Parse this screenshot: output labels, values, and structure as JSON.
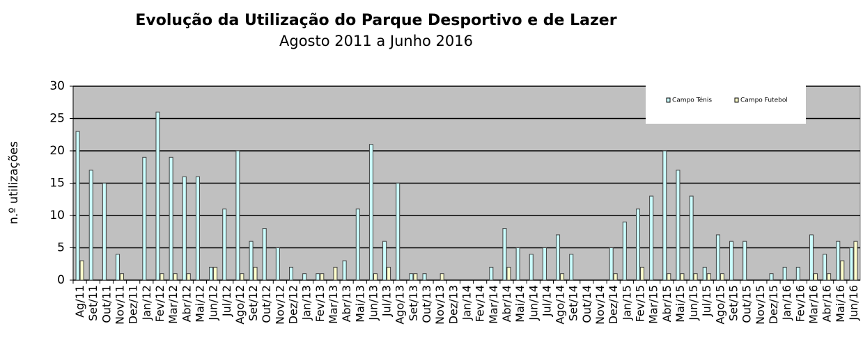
{
  "chart_data": {
    "type": "bar",
    "title": "Evolução da Utilização do Parque Desportivo e de Lazer",
    "subtitle": "Agosto 2011 a Junho 2016",
    "y_label": "n.º utilizações",
    "categories": [
      "Ag/11",
      "Set/11",
      "Out/11",
      "Nov/11",
      "Dez/11",
      "Jan/12",
      "Fev/12",
      "Mar/12",
      "Abr/12",
      "Mai/12",
      "Jun/12",
      "Jul/12",
      "Ago/12",
      "Set/12",
      "Out/12",
      "Nov/12",
      "Dez/12",
      "Jan/13",
      "Fev/13",
      "Mar/13",
      "Abr/13",
      "Mai/13",
      "Jun/13",
      "Jul/13",
      "Ago/13",
      "Set/13",
      "Out/13",
      "Nov/13",
      "Dez/13",
      "Jan/14",
      "Fev/14",
      "Mar/14",
      "Abr/14",
      "Mai/14",
      "Jun/14",
      "Jul/14",
      "Ago/14",
      "Set/14",
      "Out/14",
      "Nov/14",
      "Dez/14",
      "Jan/15",
      "Fev/15",
      "Mar/15",
      "Abr/15",
      "Mai/15",
      "Jun/15",
      "Jul/15",
      "Ago/15",
      "Set/15",
      "Out/15",
      "Nov/15",
      "Dez/15",
      "Jan/16",
      "Fev/16",
      "Mar/16",
      "Abr/16",
      "Mai/16",
      "Jun/16"
    ],
    "series": [
      {
        "name": "Campo Ténis",
        "color": "#ccffff",
        "values": [
          23,
          17,
          15,
          4,
          0,
          19,
          26,
          19,
          16,
          16,
          2,
          11,
          20,
          6,
          8,
          5,
          2,
          1,
          1,
          0,
          3,
          11,
          21,
          6,
          15,
          1,
          1,
          0,
          0,
          0,
          0,
          2,
          8,
          5,
          4,
          5,
          7,
          4,
          0,
          0,
          5,
          9,
          11,
          13,
          20,
          17,
          13,
          2,
          7,
          6,
          6,
          0,
          1,
          2,
          2,
          7,
          4,
          6,
          5
        ]
      },
      {
        "name": "Campo Futebol",
        "color": "#ffffcc",
        "values": [
          3,
          0,
          0,
          1,
          0,
          0,
          1,
          1,
          1,
          0,
          2,
          0,
          1,
          2,
          0,
          0,
          0,
          0,
          1,
          2,
          0,
          0,
          1,
          2,
          0,
          1,
          0,
          1,
          0,
          0,
          0,
          0,
          2,
          0,
          0,
          0,
          1,
          0,
          0,
          0,
          1,
          0,
          2,
          0,
          1,
          1,
          1,
          1,
          1,
          0,
          0,
          0,
          0,
          0,
          0,
          1,
          1,
          3,
          6
        ]
      }
    ],
    "ylim": [
      0,
      30
    ],
    "yticks": [
      0,
      5,
      10,
      15,
      20,
      25,
      30
    ],
    "grid": true,
    "legend": "top-right",
    "background": "#c0c0c0"
  }
}
